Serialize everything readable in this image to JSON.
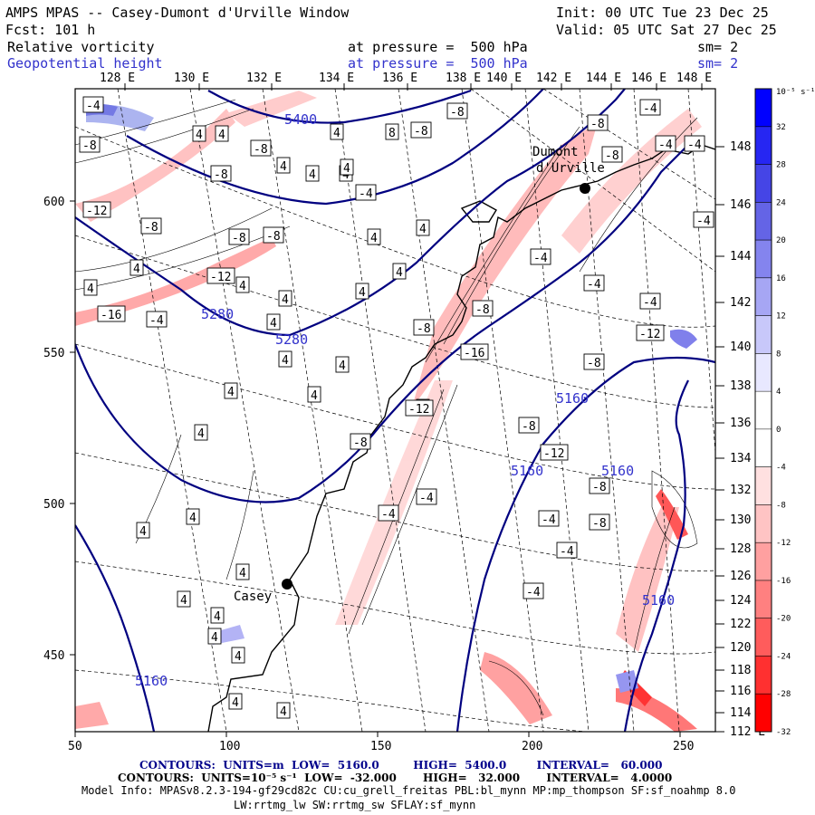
{
  "header": {
    "title": "AMPS MPAS -- Casey-Dumont d'Urville Window",
    "init": "Init: 00 UTC Tue 23 Dec 25",
    "fcst": "Fcst: 101 h",
    "valid": "Valid: 05 UTC Sat 27 Dec 25",
    "field1": {
      "name": "Relative vorticity",
      "pressure": "at pressure =  500 hPa",
      "sm": "sm= 2"
    },
    "field2": {
      "name": "Geopotential height",
      "pressure": "at pressure =  500 hPa",
      "sm": "sm= 2"
    }
  },
  "longitude_labels": [
    "128 E",
    "130 E",
    "132 E",
    "134 E",
    "136 E",
    "138 E",
    "140 E",
    "142 E",
    "144 E",
    "146 E",
    "148 E"
  ],
  "right_lon_labels": [
    "148 E",
    "146 E",
    "144 E",
    "142 E",
    "140 E",
    "138 E",
    "136 E",
    "134 E",
    "132 E",
    "130 E",
    "128 E",
    "126 E",
    "124 E",
    "122 E",
    "120 E",
    "118 E",
    "116 E",
    "114 E",
    "112 E"
  ],
  "x_axis": {
    "ticks": [
      "50",
      "100",
      "150",
      "200",
      "250"
    ]
  },
  "y_axis": {
    "ticks": [
      "600",
      "550",
      "500",
      "450"
    ]
  },
  "colorbar": {
    "unit": "10⁻⁵ s⁻¹",
    "labels": [
      "32",
      "28",
      "24",
      "20",
      "16",
      "12",
      "8",
      "4",
      "0",
      "-4",
      "-8",
      "-12",
      "-16",
      "-20",
      "-24",
      "-28",
      "-32"
    ],
    "colors": [
      "#0000ff",
      "#2626f2",
      "#4545e6",
      "#6464e6",
      "#8484ee",
      "#a6a6f4",
      "#c8c8fa",
      "#e8e8ff",
      "#ffffff",
      "#ffffff",
      "#ffe0e0",
      "#ffc4c4",
      "#ffa0a0",
      "#ff8080",
      "#ff5c5c",
      "#ff3030",
      "#ff0000"
    ]
  },
  "stations": [
    {
      "name": "Casey"
    },
    {
      "name": "Dumont d'Urville"
    }
  ],
  "height_labels": [
    "5400",
    "5280",
    "5280",
    "5160",
    "5160",
    "5160",
    "5160",
    "5160"
  ],
  "vort_labels": {
    "pos": [
      "4",
      "4",
      "4",
      "8",
      "4",
      "4",
      "4",
      "4",
      "4",
      "4",
      "4",
      "4",
      "4",
      "4",
      "4",
      "4",
      "4",
      "4",
      "4",
      "4",
      "4",
      "4",
      "4",
      "4",
      "4",
      "4",
      "4",
      "4",
      "4",
      "4",
      "4",
      "4"
    ],
    "neg": [
      "-4",
      "-8",
      "-8",
      "-12",
      "-8",
      "-8",
      "-8",
      "-16",
      "-4",
      "-4",
      "-12",
      "-8",
      "-8",
      "-8",
      "-8",
      "-8",
      "-4",
      "-4",
      "-4",
      "-4",
      "-4",
      "-4",
      "-4",
      "-12",
      "-8",
      "-8",
      "-8",
      "-16",
      "-12",
      "-8",
      "-4",
      "-4",
      "-8",
      "-12",
      "-8",
      "-8",
      "-4",
      "-4",
      "-4"
    ]
  },
  "footer": {
    "line1": "CONTOURS:  UNITS=m  LOW=  5160.0         HIGH=  5400.0        INTERVAL=   60.000",
    "line2": "CONTOURS:  UNITS=10⁻⁵ s⁻¹  LOW=  -32.000       HIGH=   32.000       INTERVAL=   4.0000",
    "model_info": "Model Info: MPASv8.2.3-194-gf29cd82c CU:cu_grell_freitas PBL:bl_mynn MP:mp_thompson SF:sf_noahmp 8.0",
    "model_info2": "LW:rrtmg_lw SW:rrtmg_sw SFLAY:sf_mynn"
  }
}
